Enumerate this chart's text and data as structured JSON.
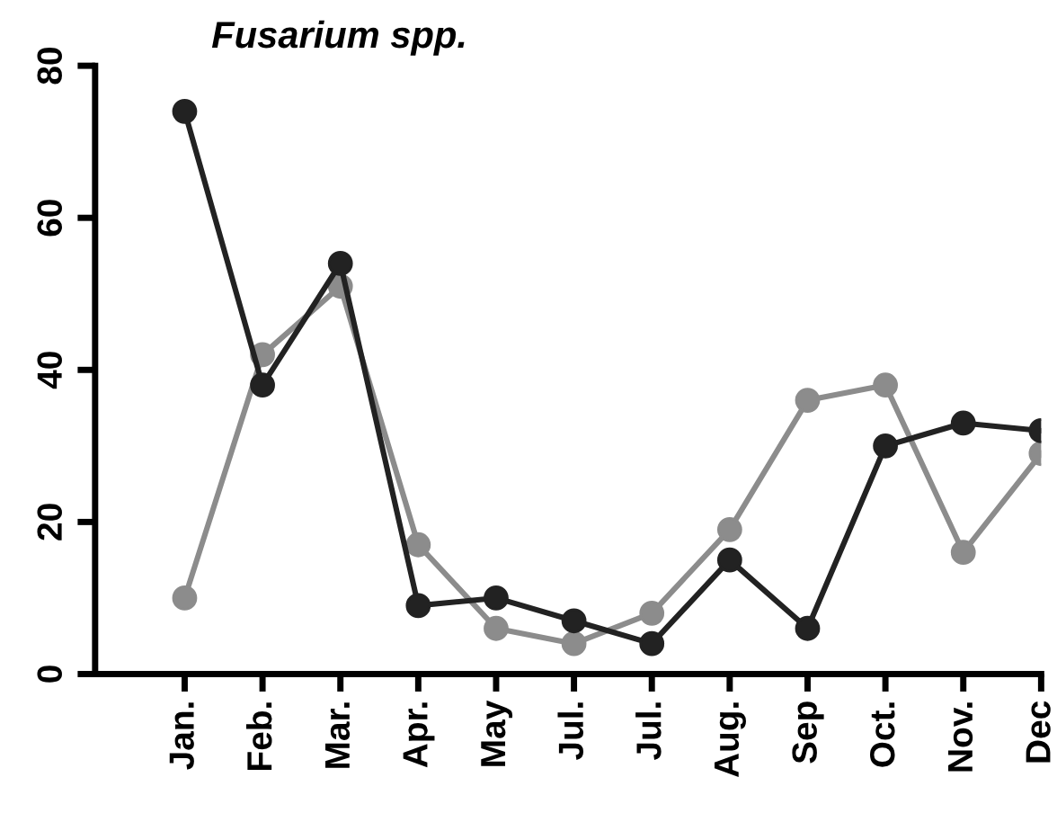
{
  "chart_data": {
    "type": "line",
    "title": "Fusarium spp.",
    "categories": [
      "Jan.",
      "Feb.",
      "Mar.",
      "Apr.",
      "May",
      "Jul.",
      "Jul.",
      "Aug.",
      "Sep",
      "Oct.",
      "Nov.",
      "Dec"
    ],
    "series": [
      {
        "color": "#8c8c8c",
        "values": [
          10,
          42,
          51,
          17,
          6,
          4,
          8,
          19,
          36,
          38,
          16,
          29
        ]
      },
      {
        "color": "#222222",
        "values": [
          74,
          38,
          54,
          9,
          10,
          7,
          4,
          15,
          6,
          30,
          33,
          32
        ]
      }
    ],
    "ylim": [
      0,
      80
    ],
    "yticks": [
      0,
      20,
      40,
      60,
      80
    ],
    "marker": "circle",
    "line_style": "solid",
    "grid": false,
    "legend": false
  }
}
